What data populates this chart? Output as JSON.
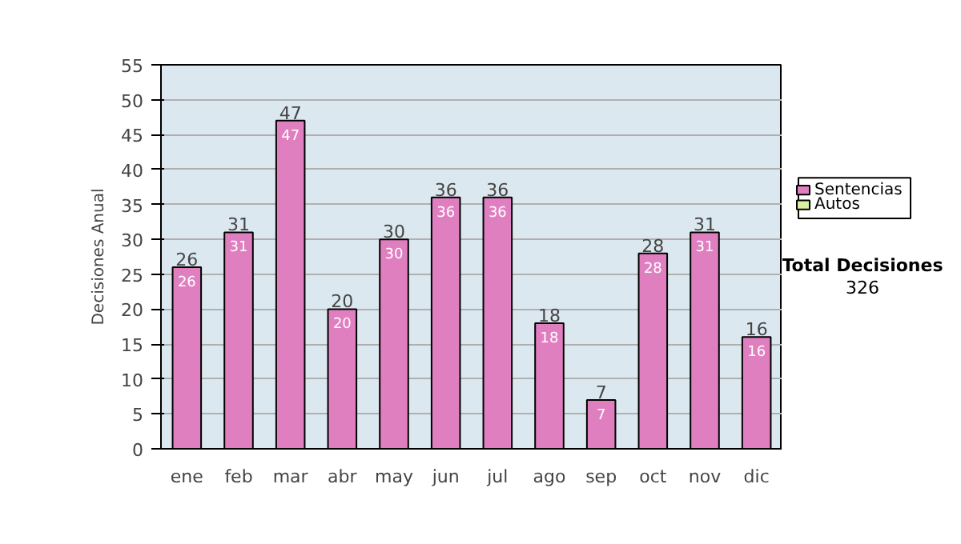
{
  "chart_data": {
    "type": "bar",
    "stacked": true,
    "ylabel": "Decisiones Anual",
    "categories": [
      "ene",
      "feb",
      "mar",
      "abr",
      "may",
      "jun",
      "jul",
      "ago",
      "sep",
      "oct",
      "nov",
      "dic"
    ],
    "series": [
      {
        "name": "Sentencias",
        "color": "#e07fc0",
        "values": [
          26,
          31,
          47,
          20,
          30,
          36,
          36,
          18,
          7,
          28,
          31,
          16
        ],
        "value_labels": [
          "26",
          "31",
          "47",
          "20",
          "30",
          "36",
          "36",
          "18",
          "7",
          "28",
          "31",
          "16"
        ]
      },
      {
        "name": "Autos",
        "color": "#d8eea0",
        "values": [
          null,
          null,
          null,
          null,
          null,
          null,
          null,
          null,
          null,
          null,
          null,
          null
        ]
      }
    ],
    "totals": [
      "26",
      "31",
      "47",
      "20",
      "30",
      "36",
      "36",
      "18",
      "7",
      "28",
      "31",
      "16"
    ],
    "ylim": [
      0,
      55
    ],
    "yticks": [
      0,
      5,
      10,
      15,
      20,
      25,
      30,
      35,
      40,
      45,
      50,
      55
    ],
    "grid": "y",
    "legend": "right",
    "annotations": [
      "Total Decisiones",
      "326"
    ]
  }
}
